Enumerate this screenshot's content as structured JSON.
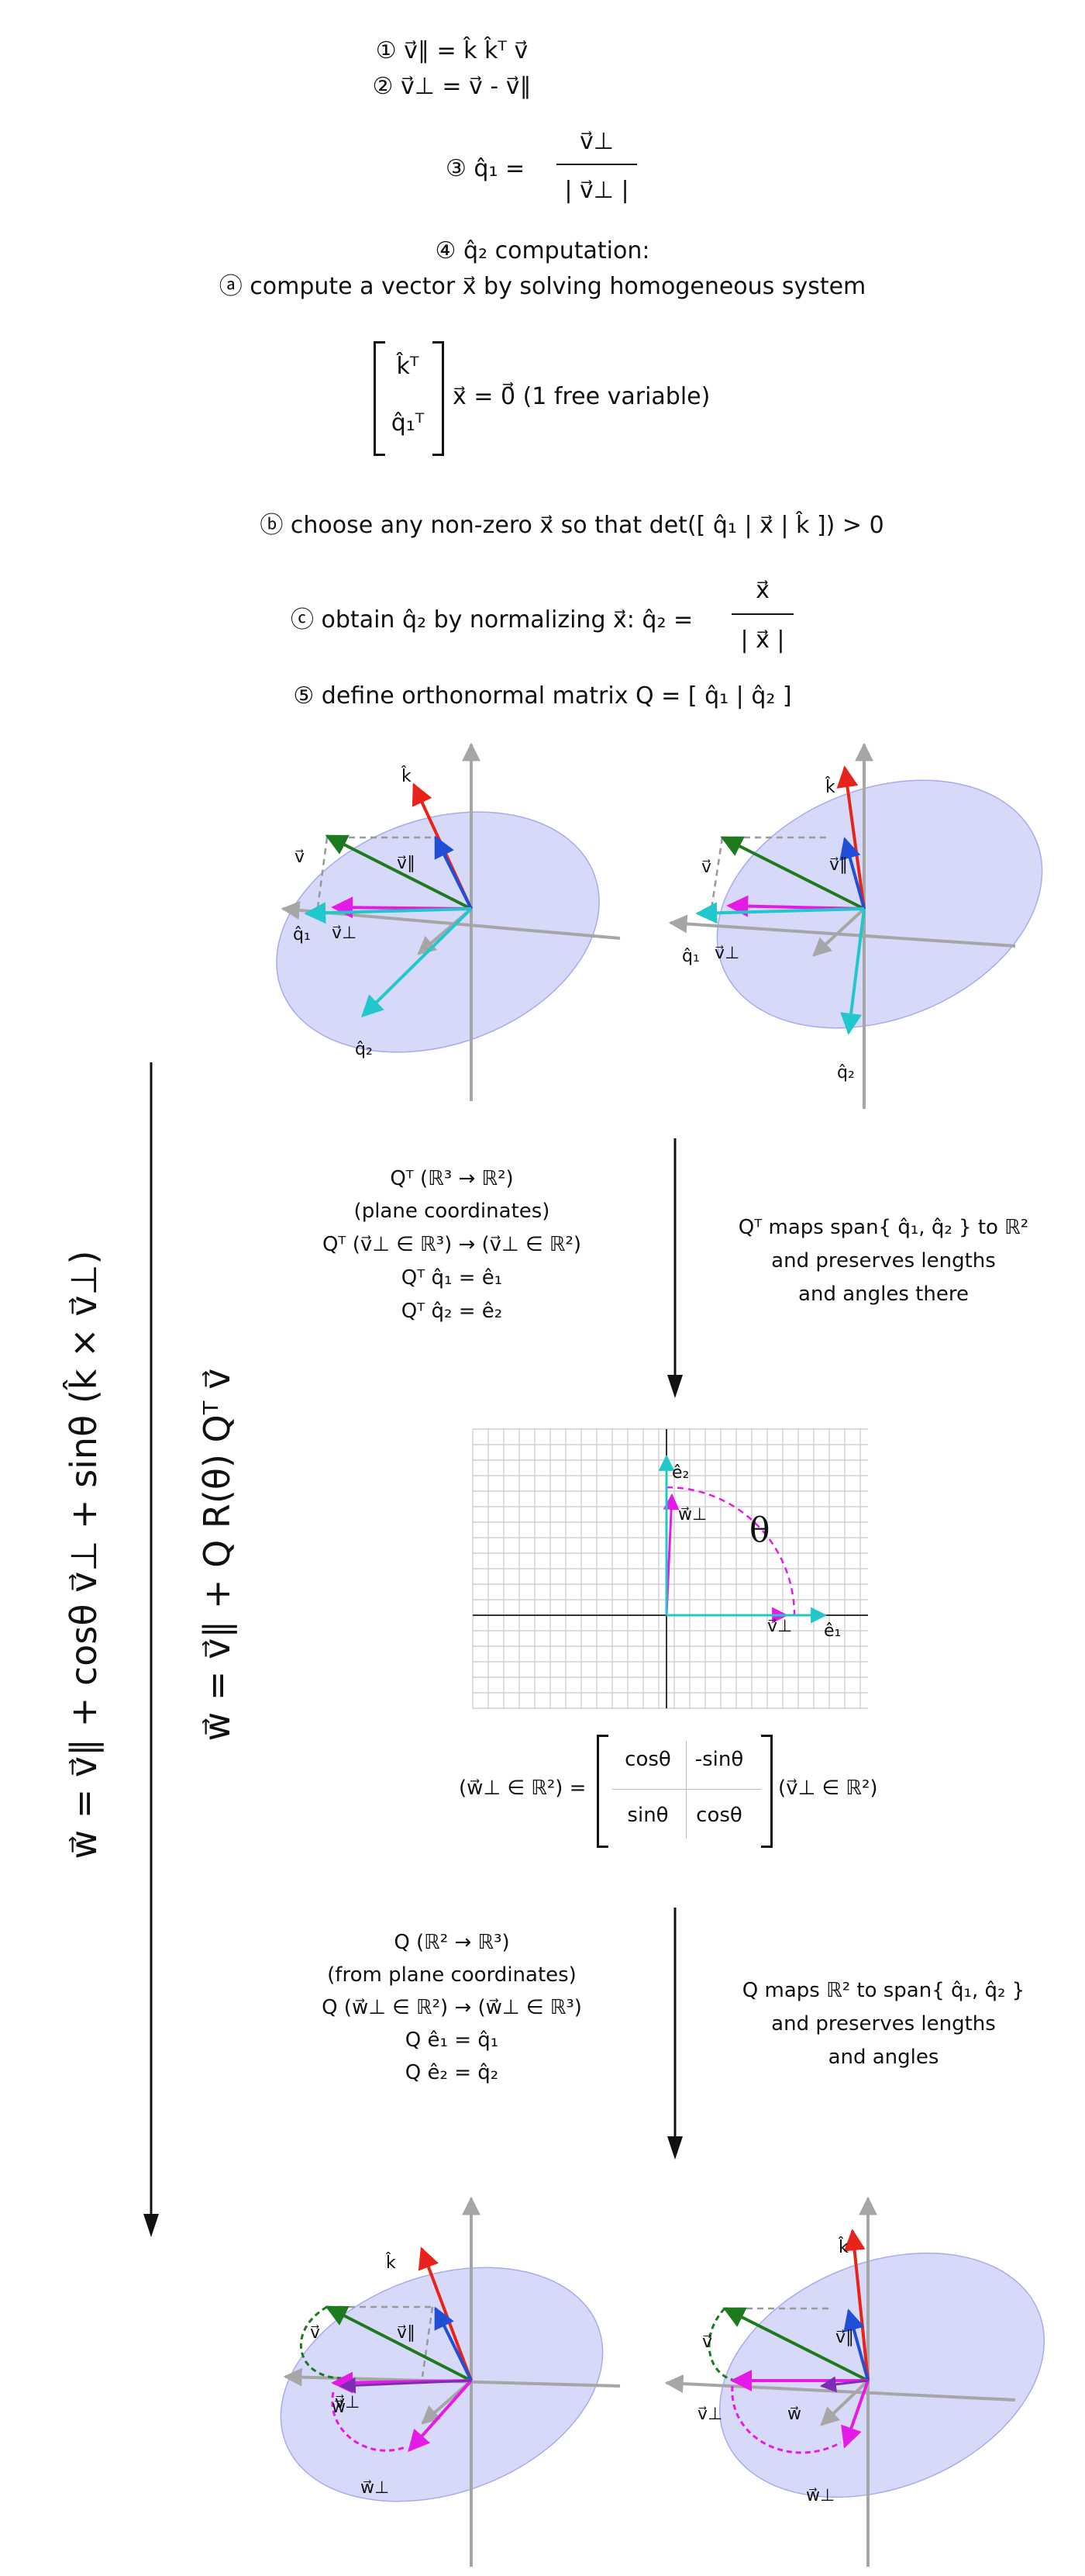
{
  "steps": {
    "s1": "① v⃗∥ = k̂ k̂ᵀ v⃗",
    "s2": "② v⃗⊥ = v⃗ - v⃗∥",
    "s3_prefix": "③ q̂₁ =",
    "s3_num": "v⃗⊥",
    "s3_den": "| v⃗⊥ |",
    "s4_title": "④ q̂₂ computation:",
    "s4a": "ⓐ compute a vector x⃗ by solving homogeneous system",
    "matrix_row1": "k̂ᵀ",
    "matrix_row2": "q̂₁ᵀ",
    "matrix_rhs": "x⃗ = 0⃗ (1 free variable)",
    "s4b": "ⓑ choose any non-zero x⃗ so that det([ q̂₁ | x⃗ | k̂ ]) > 0",
    "s4c_prefix": "ⓒ obtain q̂₂ by normalizing x⃗: q̂₂ =",
    "s4c_num": "x⃗",
    "s4c_den": "| x⃗ |",
    "s5": "⑤ define orthonormal matrix Q = [ q̂₁ | q̂₂ ]"
  },
  "labels": {
    "k": "k̂",
    "v": "v⃗",
    "vpar": "v⃗∥",
    "vperp": "v⃗⊥",
    "q1": "q̂₁",
    "q2": "q̂₂",
    "e1": "ê₁",
    "e2": "ê₂",
    "wperp": "w⃗⊥",
    "w": "w⃗",
    "theta": "θ"
  },
  "qt_block": {
    "lines": [
      "Qᵀ (ℝ³ → ℝ²)",
      "(plane coordinates)",
      "Qᵀ (v⃗⊥ ∈ ℝ³) → (v⃗⊥ ∈ ℝ²)",
      "Qᵀ q̂₁ = ê₁",
      "Qᵀ q̂₂ = ê₂"
    ],
    "note": [
      "Qᵀ maps span{ q̂₁, q̂₂ } to ℝ²",
      "and preserves lengths",
      "and angles there"
    ]
  },
  "rotation": {
    "lhs": "(w⃗⊥ ∈ ℝ²) =",
    "m11": "cosθ",
    "m12": "-sinθ",
    "m21": "sinθ",
    "m22": "cosθ",
    "rhs": "(v⃗⊥ ∈ ℝ²)"
  },
  "q_block": {
    "lines": [
      "Q (ℝ² → ℝ³)",
      "(from plane coordinates)",
      "Q (w⃗⊥ ∈ ℝ²) → (w⃗⊥ ∈ ℝ³)",
      "Q ê₁ = q̂₁",
      "Q ê₂ = q̂₂"
    ],
    "note": [
      "Q maps ℝ² to span{ q̂₁, q̂₂ }",
      "and preserves lengths",
      "and angles"
    ]
  },
  "formulas": {
    "rodrigues": "w⃗ = v⃗∥ + cosθ v⃗⊥ + sinθ (k̂ × v⃗⊥)",
    "matrix_form": "w⃗ = v⃗∥ + Q R(θ) Qᵀ v⃗"
  },
  "colors": {
    "k": "#e8231b",
    "v": "#1e7a1e",
    "vpar": "#1f4fd6",
    "vperp": "#e61ae6",
    "q1": "#22c7cc",
    "q2": "#22c7cc",
    "plane": "#c9ccf7",
    "axis": "#a6a6a6",
    "grid": "#c8c8c8"
  }
}
